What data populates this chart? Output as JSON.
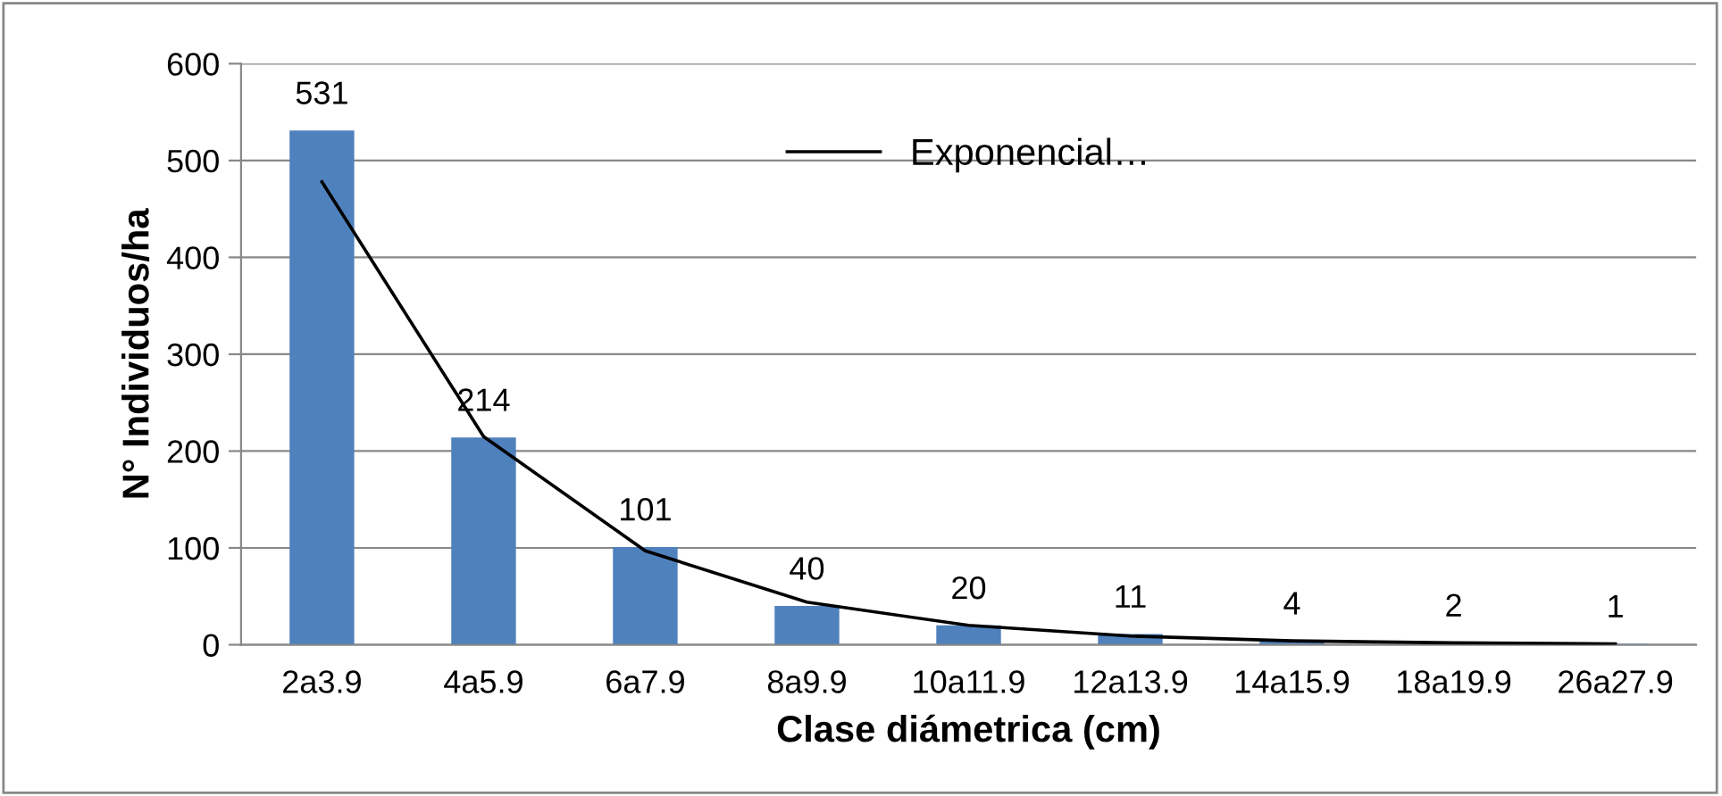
{
  "chart_data": {
    "type": "bar",
    "xlabel": "Clase diámetrica (cm)",
    "ylabel": "N° Individuos/ha",
    "categories": [
      "2a3.9",
      "4a5.9",
      "6a7.9",
      "8a9.9",
      "10a11.9",
      "12a13.9",
      "14a15.9",
      "18a19.9",
      "26a27.9"
    ],
    "series": [
      {
        "color": "#4f81bd",
        "values": [
          531,
          214,
          101,
          40,
          20,
          11,
          4,
          2,
          1
        ],
        "data_labels": true
      },
      {
        "type": "line",
        "name": "Exponencial…",
        "color": "#000000",
        "values": [
          478,
          215,
          97,
          44,
          20,
          9,
          4,
          2,
          1
        ]
      }
    ],
    "ylim": [
      0,
      600
    ],
    "yticks": [
      0,
      100,
      200,
      300,
      400,
      500,
      600
    ],
    "grid": "y",
    "legend": "top",
    "marker": "none",
    "line_style": "solid"
  }
}
